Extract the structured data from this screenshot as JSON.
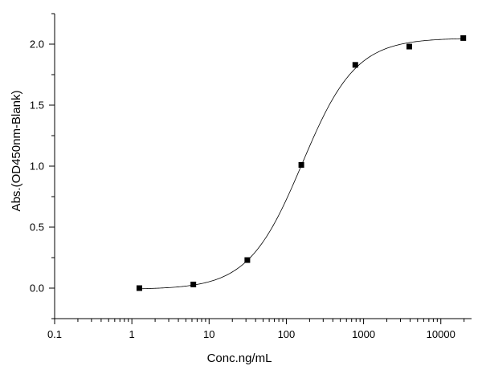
{
  "chart_data": {
    "type": "scatter",
    "title": "",
    "xlabel": "Conc.ng/mL",
    "ylabel": "Abs.(OD450nm-Blank)",
    "x_scale": "log",
    "xlim": [
      0.1,
      25000
    ],
    "ylim": [
      -0.25,
      2.25
    ],
    "x_ticks": [
      0.1,
      1,
      10,
      100,
      1000,
      10000
    ],
    "x_tick_labels": [
      "0.1",
      "1",
      "10",
      "100",
      "1000",
      "10000"
    ],
    "y_ticks": [
      0.0,
      0.5,
      1.0,
      1.5,
      2.0
    ],
    "y_tick_labels": [
      "0.0",
      "0.5",
      "1.0",
      "1.5",
      "2.0"
    ],
    "grid": false,
    "legend": "none",
    "marker_color": "#000000",
    "series": [
      {
        "marker": "square",
        "x": [
          1.25,
          6.25,
          31.25,
          156.25,
          781.25,
          3906.25,
          19531.25
        ],
        "y": [
          0.0,
          0.03,
          0.23,
          1.01,
          1.83,
          1.98,
          2.05
        ]
      }
    ],
    "fit_curve": {
      "type": "4PL",
      "bottom": -0.01,
      "top": 2.05,
      "ec50": 160,
      "hill": 1.25,
      "x_range": [
        1.25,
        19531.25
      ]
    }
  }
}
